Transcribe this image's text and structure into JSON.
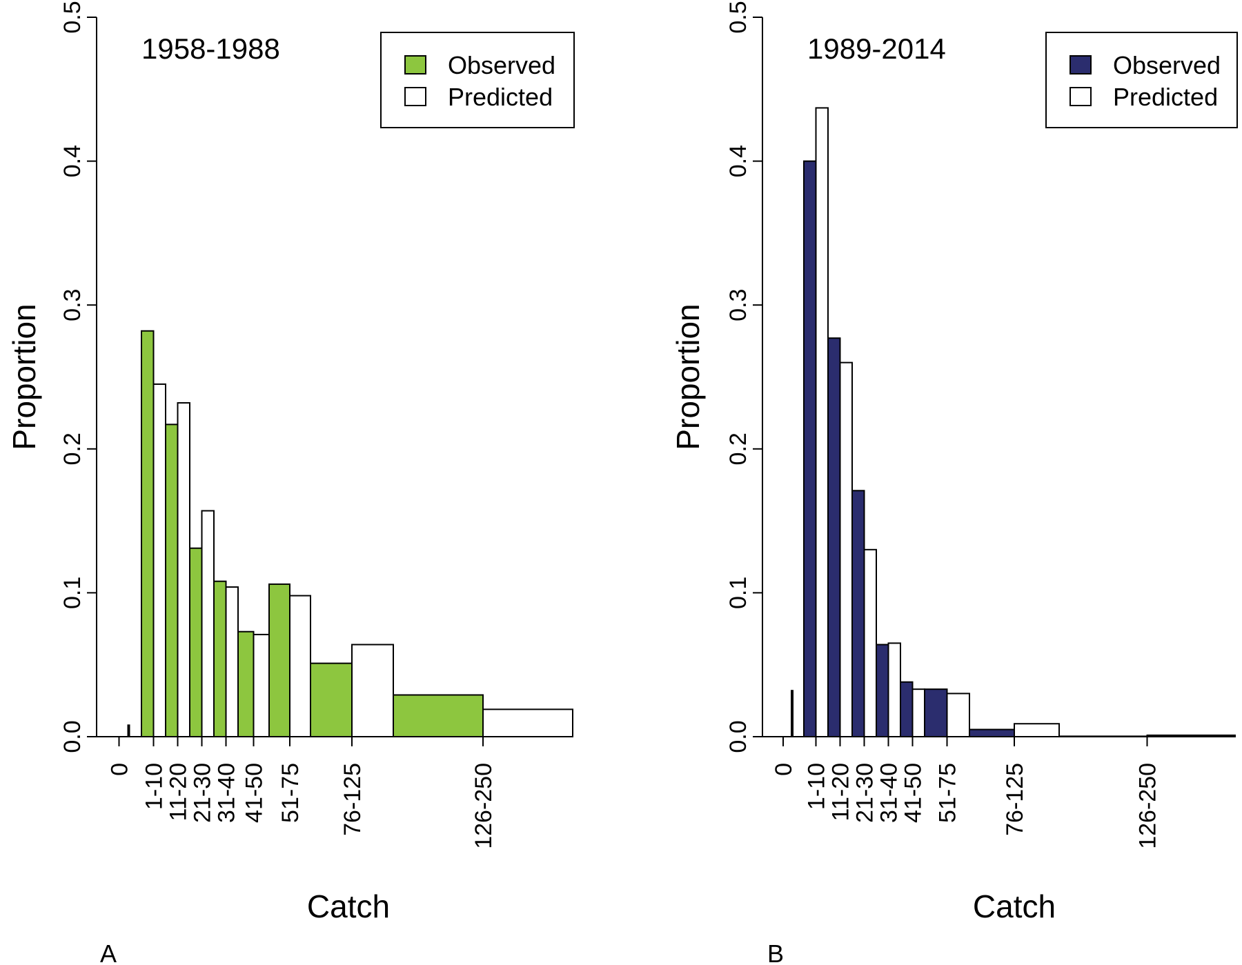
{
  "chart_data": [
    {
      "type": "bar",
      "panel_label": "A",
      "annotation": "1958-1988",
      "xlabel": "Catch",
      "ylabel": "Proportion",
      "ylim": [
        0,
        0.5
      ],
      "yticks": [
        "0.0",
        "0.1",
        "0.2",
        "0.3",
        "0.4",
        "0.5"
      ],
      "categories": [
        "0",
        "1-10",
        "11-20",
        "21-30",
        "31-40",
        "41-50",
        "51-75",
        "76-125",
        "126-250"
      ],
      "bin_ranges": [
        [
          0,
          0
        ],
        [
          1,
          10
        ],
        [
          11,
          20
        ],
        [
          21,
          30
        ],
        [
          31,
          40
        ],
        [
          41,
          50
        ],
        [
          51,
          75
        ],
        [
          76,
          125
        ],
        [
          126,
          250
        ]
      ],
      "observed_color": "#8dc63f",
      "predicted_color": "#ffffff",
      "legend": {
        "placement": "top-right",
        "entries": [
          "Observed",
          "Predicted"
        ]
      },
      "series": [
        {
          "name": "Observed",
          "values": [
            0.001,
            0.282,
            0.217,
            0.131,
            0.108,
            0.073,
            0.106,
            0.051,
            0.029
          ]
        },
        {
          "name": "Predicted",
          "values": [
            0.008,
            0.245,
            0.232,
            0.157,
            0.104,
            0.071,
            0.098,
            0.064,
            0.019
          ]
        }
      ]
    },
    {
      "type": "bar",
      "panel_label": "B",
      "annotation": "1989-2014",
      "xlabel": "Catch",
      "ylabel": "Proportion",
      "ylim": [
        0,
        0.5
      ],
      "yticks": [
        "0.0",
        "0.1",
        "0.2",
        "0.3",
        "0.4",
        "0.5"
      ],
      "categories": [
        "0",
        "1-10",
        "11-20",
        "21-30",
        "31-40",
        "41-50",
        "51-75",
        "76-125",
        "126-250"
      ],
      "bin_ranges": [
        [
          0,
          0
        ],
        [
          1,
          10
        ],
        [
          11,
          20
        ],
        [
          21,
          30
        ],
        [
          31,
          40
        ],
        [
          41,
          50
        ],
        [
          51,
          75
        ],
        [
          76,
          125
        ],
        [
          126,
          250
        ]
      ],
      "observed_color": "#2b2d6e",
      "predicted_color": "#ffffff",
      "legend": {
        "placement": "top-right",
        "entries": [
          "Observed",
          "Predicted"
        ]
      },
      "series": [
        {
          "name": "Observed",
          "values": [
            0.01,
            0.4,
            0.277,
            0.171,
            0.064,
            0.038,
            0.033,
            0.005,
            0.0003
          ]
        },
        {
          "name": "Predicted",
          "values": [
            0.032,
            0.437,
            0.26,
            0.13,
            0.065,
            0.033,
            0.03,
            0.009,
            0.001
          ]
        }
      ]
    }
  ]
}
